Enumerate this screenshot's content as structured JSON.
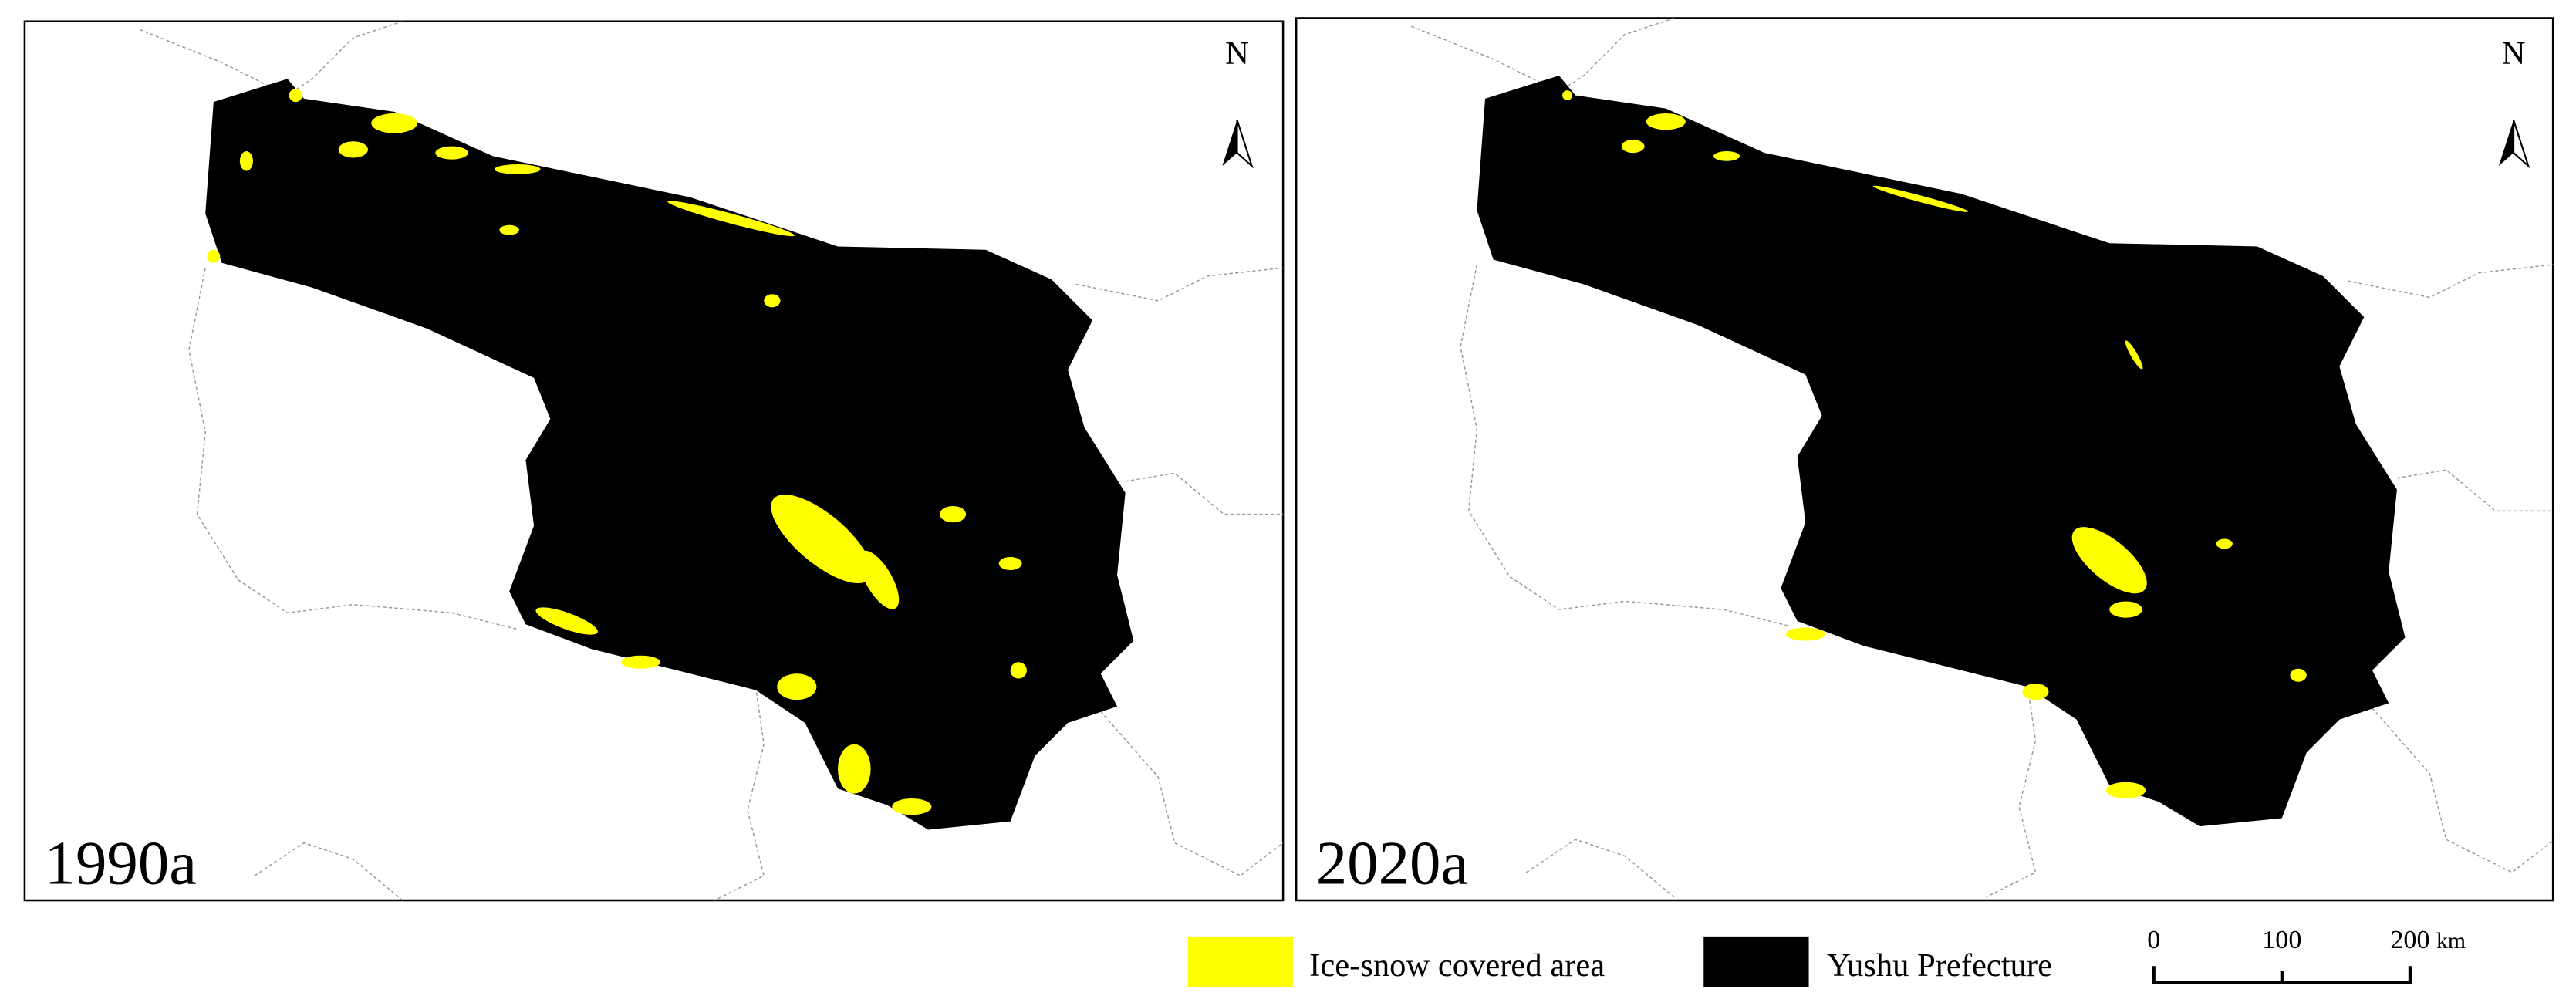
{
  "panels": [
    {
      "label": "1990a",
      "north": "N"
    },
    {
      "label": "2020a",
      "north": "N"
    }
  ],
  "legend": [
    {
      "label": "Ice-snow covered area"
    },
    {
      "label": "Yushu Prefecture"
    }
  ],
  "scale_bar": {
    "labels": [
      "0",
      "100",
      "200"
    ],
    "unit": "km"
  }
}
